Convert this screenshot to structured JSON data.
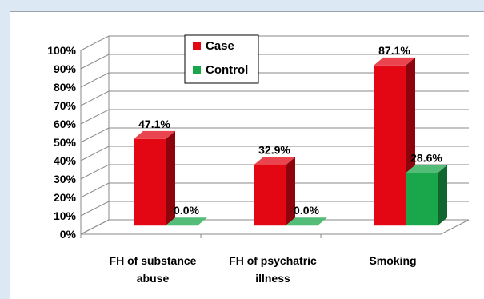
{
  "chart_data": {
    "type": "bar",
    "style": "3d-clustered-column",
    "categories": [
      [
        "FH of substance",
        "abuse"
      ],
      [
        "FH of psychatric",
        "illness"
      ],
      [
        "Smoking"
      ]
    ],
    "series": [
      {
        "name": "Case",
        "values": [
          47.1,
          32.9,
          87.1
        ],
        "labels": [
          "47.1%",
          "32.9%",
          "87.1%"
        ],
        "color": "#e30613"
      },
      {
        "name": "Control",
        "values": [
          0.0,
          0.0,
          28.6
        ],
        "labels": [
          "0.0%",
          "0.0%",
          "28.6%"
        ],
        "color": "#1aa64a"
      }
    ],
    "y_ticks": [
      "0%",
      "10%",
      "20%",
      "30%",
      "40%",
      "50%",
      "60%",
      "70%",
      "80%",
      "90%",
      "100%"
    ],
    "ylim": [
      0,
      100
    ],
    "grid": true,
    "legend": {
      "position": "top-center"
    }
  }
}
